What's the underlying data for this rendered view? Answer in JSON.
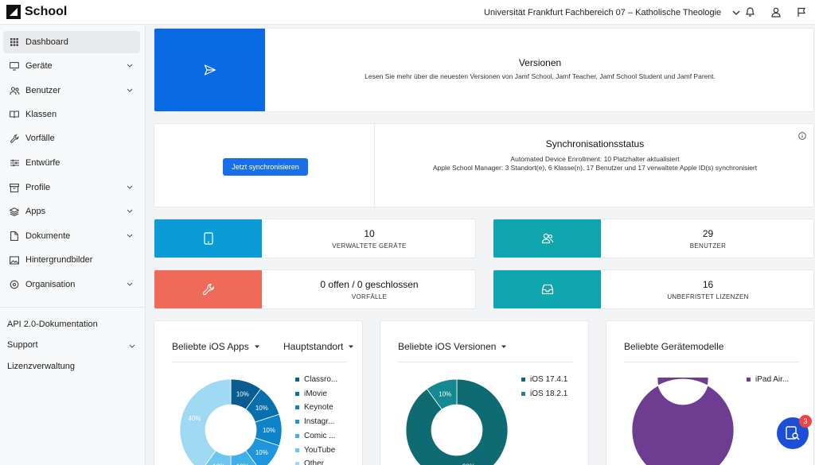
{
  "app": {
    "name": "School"
  },
  "header": {
    "organization": "Universität Frankfurt Fachbereich 07 – Katholische Theologie"
  },
  "sidebar": {
    "items": [
      {
        "label": "Dashboard",
        "icon": "grid-icon",
        "expandable": false,
        "active": true
      },
      {
        "label": "Geräte",
        "icon": "monitor-icon",
        "expandable": true
      },
      {
        "label": "Benutzer",
        "icon": "users-icon",
        "expandable": true
      },
      {
        "label": "Klassen",
        "icon": "book-icon",
        "expandable": false
      },
      {
        "label": "Vorfälle",
        "icon": "wrench-icon",
        "expandable": false
      },
      {
        "label": "Entwürfe",
        "icon": "sliders-icon",
        "expandable": false
      },
      {
        "label": "Profile",
        "icon": "box-icon",
        "expandable": true
      },
      {
        "label": "Apps",
        "icon": "layers-icon",
        "expandable": true
      },
      {
        "label": "Dokumente",
        "icon": "file-icon",
        "expandable": true
      },
      {
        "label": "Hintergrundbilder",
        "icon": "image-icon",
        "expandable": false
      },
      {
        "label": "Organisation",
        "icon": "settings-icon",
        "expandable": true
      }
    ],
    "footer": [
      {
        "label": "API 2.0-Dokumentation",
        "expandable": false
      },
      {
        "label": "Support",
        "expandable": true
      },
      {
        "label": "Lizenzverwaltung",
        "expandable": false
      }
    ]
  },
  "versions": {
    "title": "Versionen",
    "text": "Lesen Sie mehr über die neuesten Versionen von Jamf School, Jamf Teacher, Jamf School Student und Jamf Parent.",
    "color": "#0a6ae3"
  },
  "sync": {
    "button": "Jetzt synchronisieren",
    "title": "Synchronisationsstatus",
    "line1": "Automated Device Enrollment: 10 Platzhalter aktualisiert",
    "line2": "Apple School Manager: 3 Standort(e), 6 Klasse(n), 17 Benutzer und 17 verwaltete Apple ID(s) synchronisiert"
  },
  "stats": [
    {
      "value": "10",
      "label": "VERWALTETE GERÄTE",
      "icon": "tablet-icon",
      "color": "#0b9bd6"
    },
    {
      "value": "29",
      "label": "BENUTZER",
      "icon": "users-icon",
      "color": "#10a6ad"
    },
    {
      "value": "0 offen / 0 geschlossen",
      "label": "VORFÄLLE",
      "icon": "wrench-icon",
      "color": "#f06a5a"
    },
    {
      "value": "16",
      "label": "UNBEFRISTET LIZENZEN",
      "icon": "inbox-icon",
      "color": "#10a6ad"
    }
  ],
  "widgets": {
    "ios_apps": {
      "title": "Beliebte iOS Apps",
      "filter": "Hauptstandort",
      "legend": [
        "Classro...",
        "iMovie",
        "Keynote",
        "Instagr...",
        "Comic ...",
        "YouTube",
        "Other"
      ],
      "colors": [
        "#0a5d91",
        "#0a6fad",
        "#0f83c9",
        "#1e95dc",
        "#3fb0e8",
        "#6cc6ef",
        "#9fd9f4"
      ]
    },
    "ios_versions": {
      "title": "Beliebte iOS Versionen",
      "legend": [
        "iOS 17.4.1",
        "iOS 18.2.1"
      ],
      "colors": [
        "#0e6b73",
        "#158891"
      ]
    },
    "models": {
      "title": "Beliebte Gerätemodelle",
      "legend": [
        "iPad Air..."
      ],
      "colors": [
        "#6e3d91"
      ]
    }
  },
  "chart_data": [
    {
      "type": "pie",
      "title": "Beliebte iOS Apps",
      "categories": [
        "Classro...",
        "iMovie",
        "Keynote",
        "Instagr...",
        "Comic ...",
        "YouTube",
        "Other"
      ],
      "values": [
        10,
        10,
        10,
        10,
        10,
        10,
        40
      ],
      "labels": [
        "10%",
        "10%",
        "10%",
        "10%",
        "10%",
        "10%",
        "40%"
      ]
    },
    {
      "type": "pie",
      "title": "Beliebte iOS Versionen",
      "categories": [
        "iOS 17.4.1",
        "iOS 18.2.1"
      ],
      "values": [
        90,
        10
      ],
      "labels": [
        "90%",
        "10%"
      ]
    },
    {
      "type": "pie",
      "title": "Beliebte Gerätemodelle",
      "categories": [
        "iPad Air..."
      ],
      "values": [
        100
      ],
      "labels": [
        "100%"
      ]
    }
  ],
  "support_badge": "3"
}
